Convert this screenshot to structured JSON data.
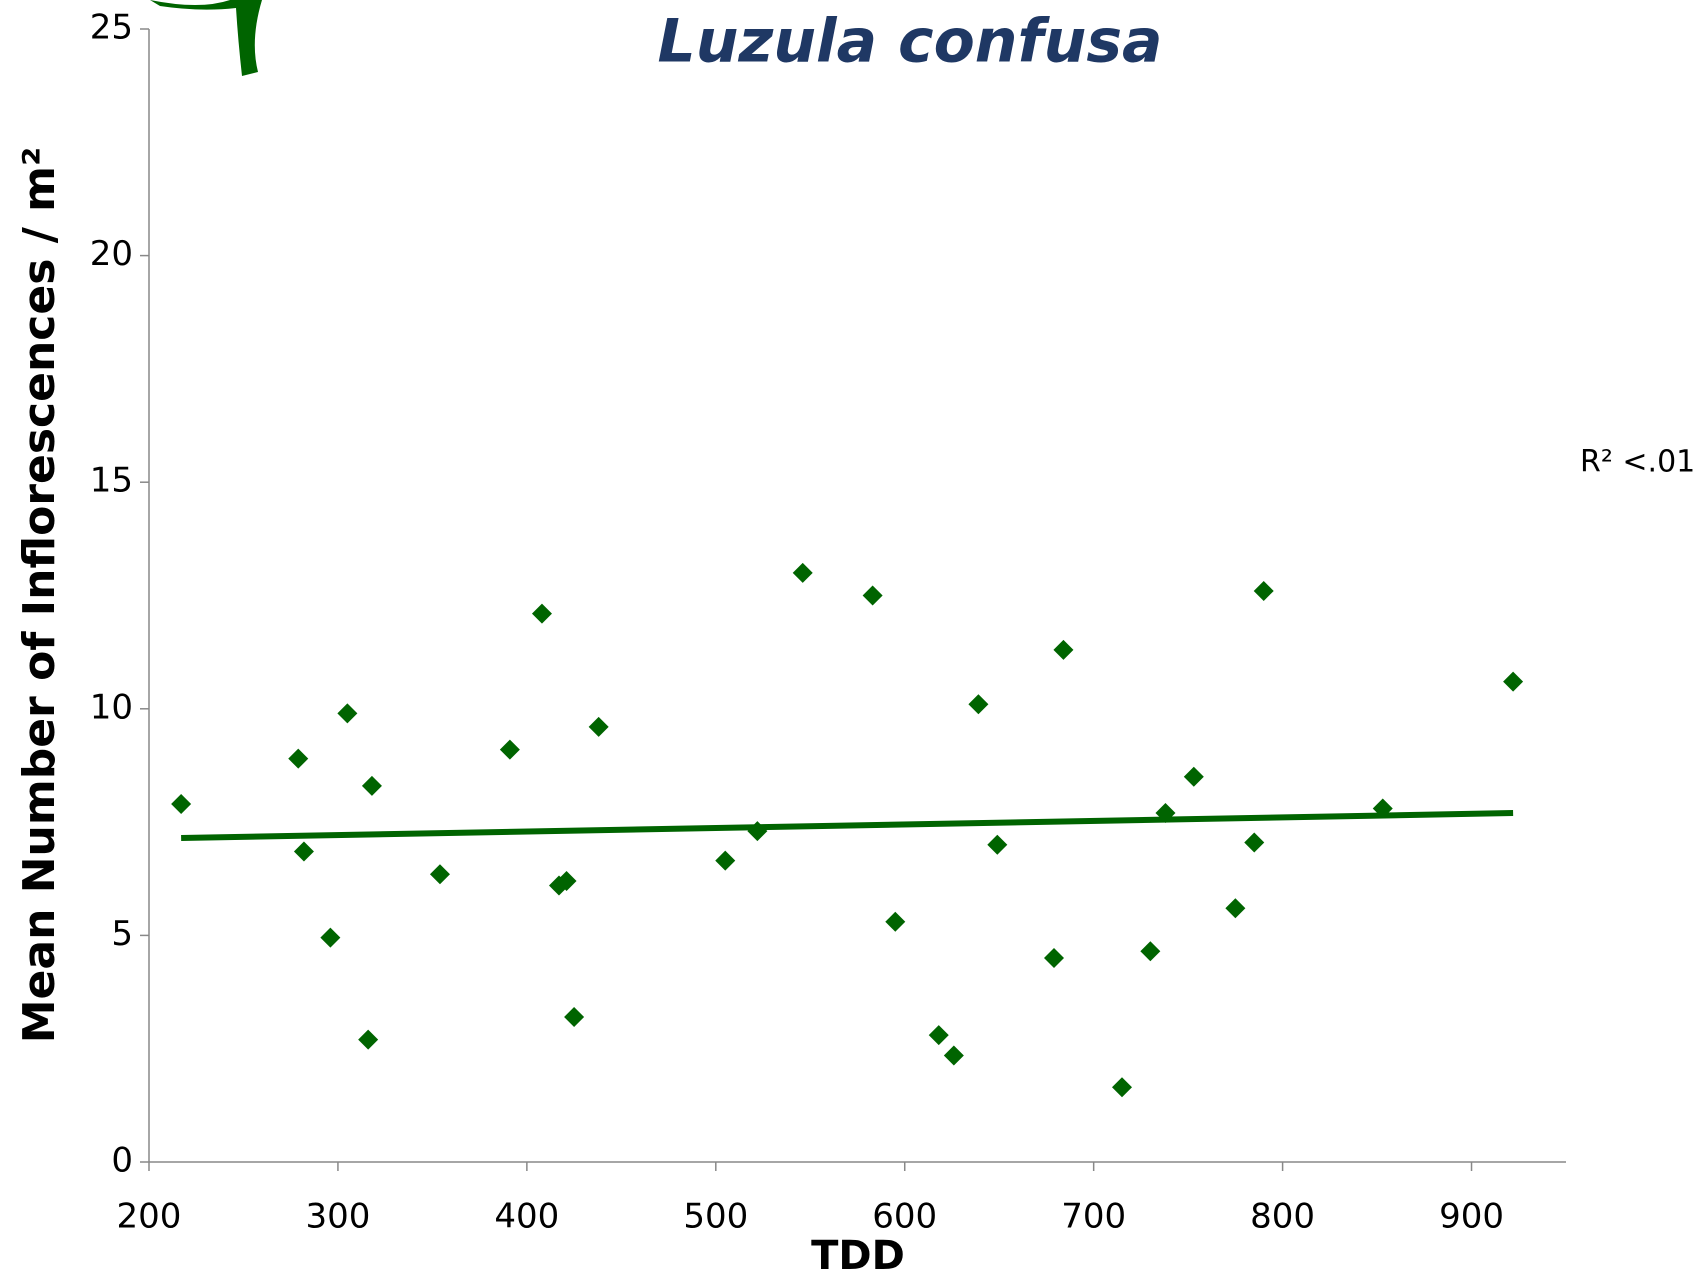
{
  "chart_data": {
    "type": "scatter",
    "title": "Luzula confusa",
    "x_label": "TDD",
    "y_label": "Mean Number of Inflorescences / m²",
    "annotation": "R² <.01",
    "color": "#006400",
    "x": [
      217,
      279,
      282,
      296,
      305,
      316,
      318,
      354,
      391,
      408,
      417,
      421,
      425,
      438,
      505,
      522,
      546,
      583,
      595,
      618,
      626,
      639,
      649,
      679,
      684,
      715,
      730,
      738,
      753,
      775,
      785,
      790,
      853,
      922
    ],
    "values": [
      7.9,
      8.9,
      6.85,
      4.95,
      9.9,
      2.7,
      8.3,
      6.35,
      9.1,
      12.1,
      6.1,
      6.2,
      3.2,
      9.6,
      6.65,
      7.3,
      13.0,
      12.5,
      5.3,
      2.8,
      2.35,
      10.1,
      7.0,
      4.5,
      11.3,
      1.65,
      4.65,
      7.7,
      8.5,
      5.6,
      7.05,
      12.6,
      7.8,
      10.6
    ],
    "trendline": {
      "x": [
        217,
        922
      ],
      "values": [
        7.15,
        7.7
      ]
    },
    "xlim": [
      200,
      950
    ],
    "xticks": [
      200,
      300,
      400,
      500,
      600,
      700,
      800,
      900
    ],
    "ylim": [
      0,
      25
    ],
    "yticks": [
      0,
      5,
      10,
      15,
      20,
      25
    ]
  }
}
